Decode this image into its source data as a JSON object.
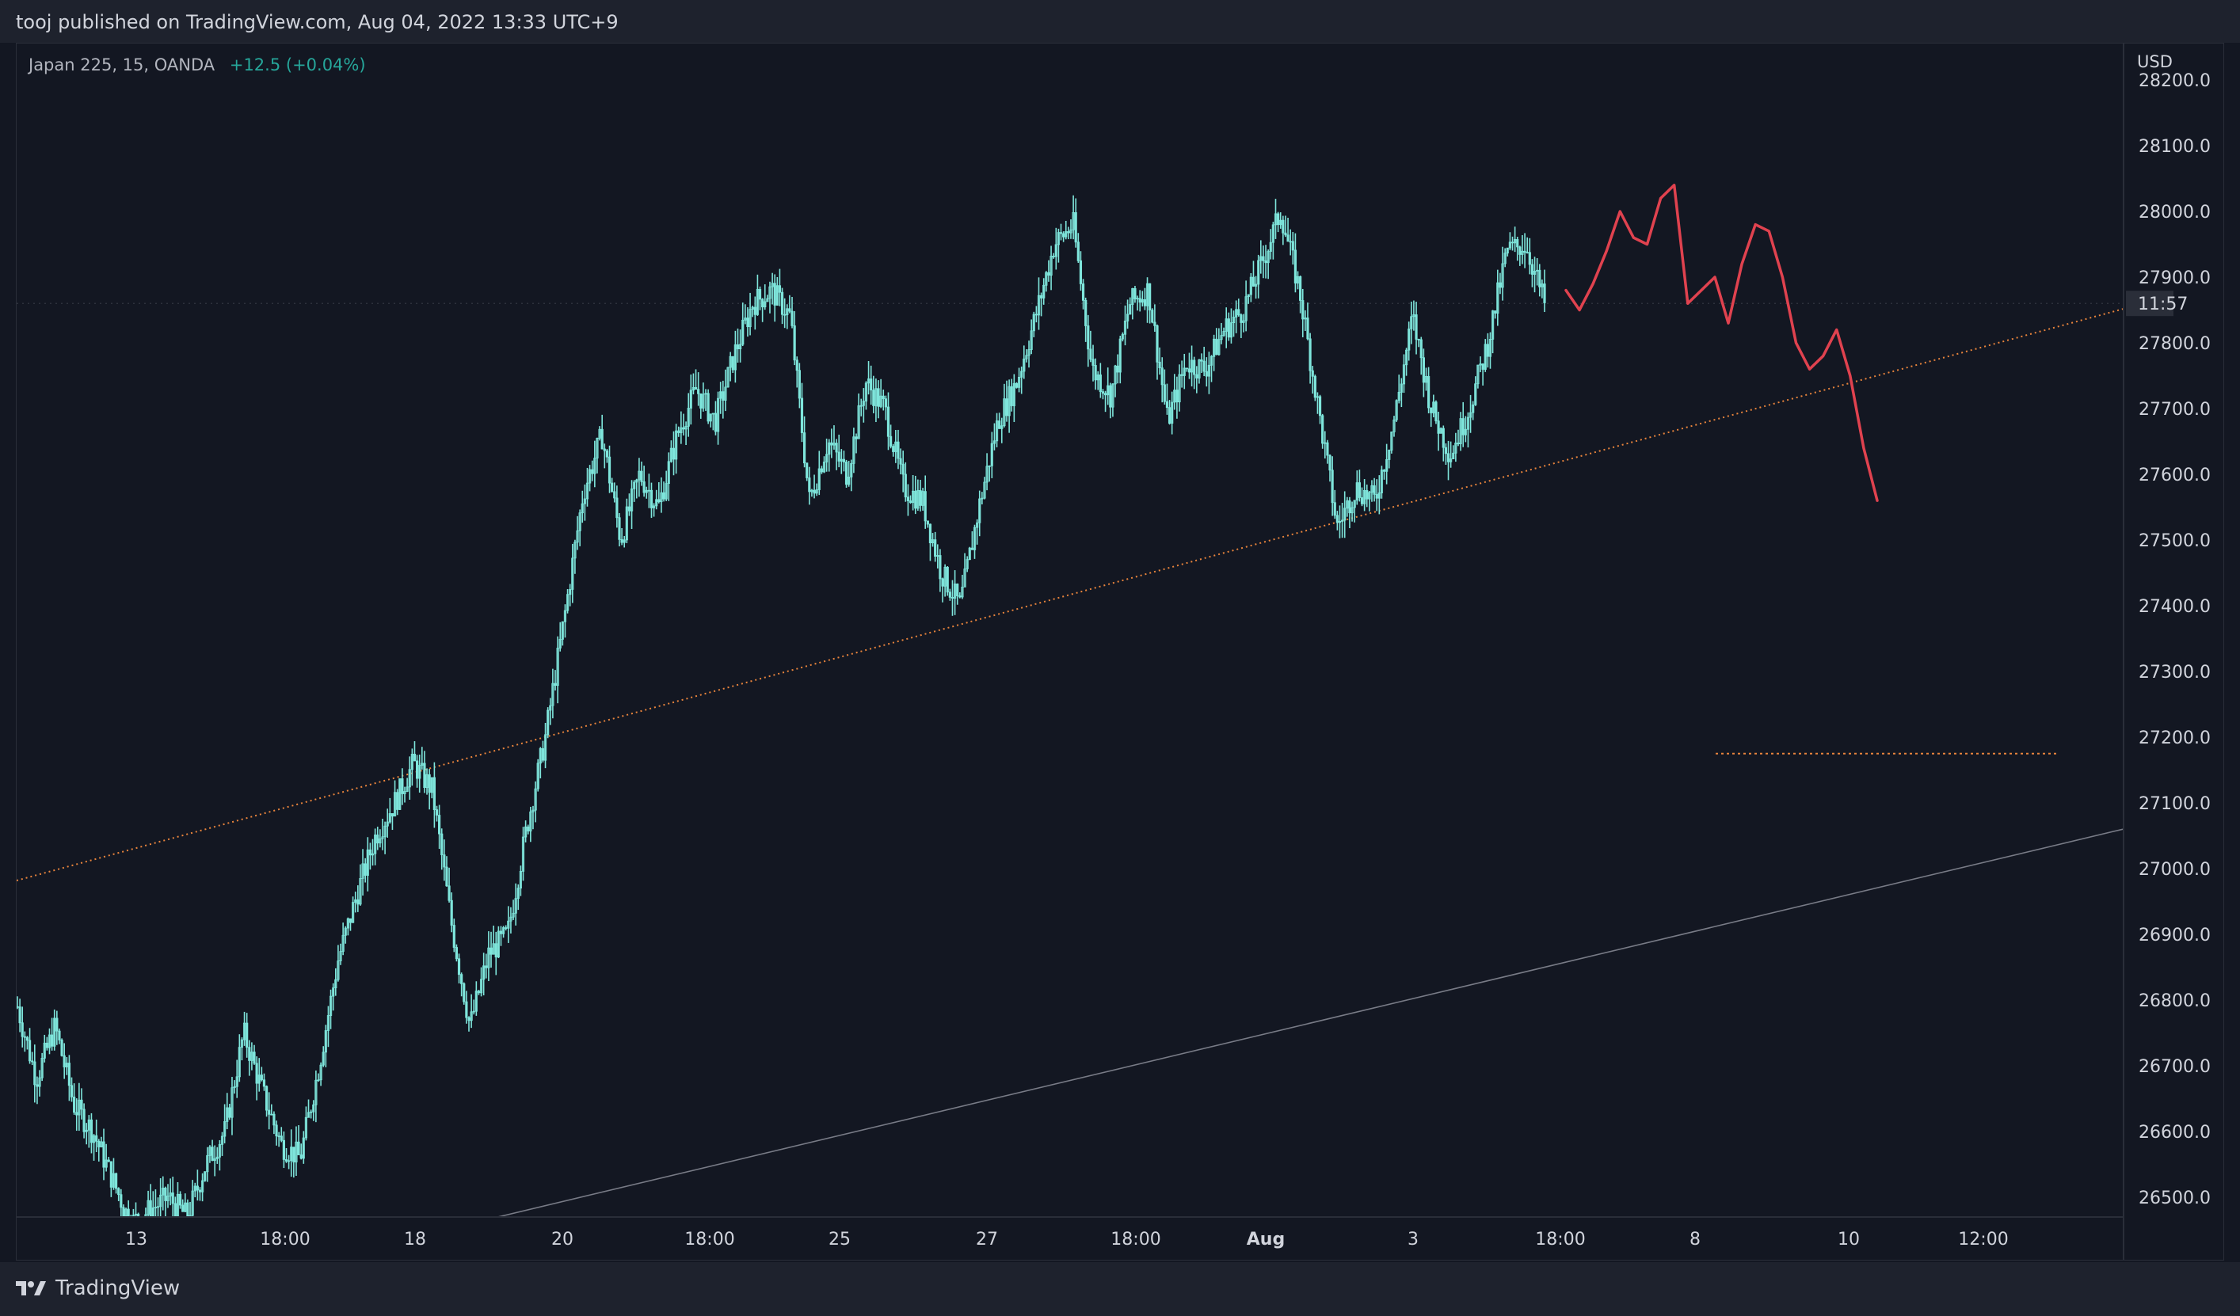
{
  "header": {
    "published": "tooj published on TradingView.com, Aug 04, 2022 13:33 UTC+9"
  },
  "legend": {
    "symbol": "Japan 225, 15, OANDA",
    "change": "+12.5 (+0.04%)"
  },
  "price_axis": {
    "currency": "USD",
    "countdown": "11:57"
  },
  "footer": {
    "brand": "TradingView"
  },
  "colors": {
    "background": "#131722",
    "candle": "#7fe6dc",
    "forecast": "#e0424f",
    "trendline": "#e9843c",
    "channel": "#787b86"
  },
  "chart_data": {
    "type": "line",
    "title": "Japan 225, 15, OANDA",
    "ylim": [
      26460,
      28260
    ],
    "yticks": [
      26500,
      26600,
      26700,
      26800,
      26900,
      27000,
      27100,
      27200,
      27300,
      27400,
      27500,
      27600,
      27700,
      27800,
      27900,
      28000,
      28100,
      28200
    ],
    "ytick_labels": [
      "26500.0",
      "26600.0",
      "26700.0",
      "26800.0",
      "26900.0",
      "27000.0",
      "27100.0",
      "27200.0",
      "27300.0",
      "27400.0",
      "27500.0",
      "27600.0",
      "27700.0",
      "27800.0",
      "27900.0",
      "28000.0",
      "28100.0",
      "28200.0"
    ],
    "xtick_labels": [
      "13",
      "18:00",
      "18",
      "20",
      "18:00",
      "25",
      "27",
      "18:00",
      "Aug",
      "3",
      "18:00",
      "8",
      "10",
      "12:00"
    ],
    "xtick_bold": [
      false,
      false,
      false,
      false,
      false,
      false,
      false,
      false,
      true,
      false,
      false,
      false,
      false,
      false
    ],
    "grid": false,
    "series": [
      {
        "values": [
          26790,
          26680,
          26760,
          26640,
          26600,
          26530,
          26460,
          26480,
          26500,
          26470,
          26550,
          26600,
          26750,
          26660,
          26580,
          26560,
          26700,
          26860,
          26960,
          27050,
          27100,
          27160,
          27120,
          26920,
          26760,
          26870,
          26900,
          27060,
          27200,
          27380,
          27570,
          27660,
          27500,
          27600,
          27550,
          27660,
          27730,
          27680,
          27780,
          27860,
          27880,
          27840,
          27560,
          27650,
          27600,
          27740,
          27700,
          27580,
          27560,
          27450,
          27400,
          27550,
          27680,
          27740,
          27840,
          27950,
          27980,
          27760,
          27720,
          27860,
          27880,
          27680,
          27770,
          27760,
          27820,
          27850,
          27920,
          28000,
          27880,
          27700,
          27520,
          27580,
          27560,
          27680,
          27840,
          27700,
          27630,
          27700,
          27800,
          27940,
          27950,
          27860
        ]
      }
    ],
    "forecast": [
      27880,
      27850,
      27890,
      27940,
      28000,
      27960,
      27950,
      28020,
      28040,
      27860,
      27880,
      27900,
      27830,
      27920,
      27980,
      27970,
      27900,
      27800,
      27760,
      27780,
      27820,
      27750,
      27640,
      27560
    ],
    "trendlines": [
      {
        "style": "dotted",
        "from": [
          "Jul 11",
          26980
        ],
        "to": [
          "Aug 11",
          27840
        ]
      },
      {
        "style": "solid",
        "from": [
          "Jul 19",
          26460
        ],
        "to": [
          "Aug 11",
          27050
        ]
      },
      {
        "style": "dotted-horizontal",
        "value": 27175
      }
    ]
  }
}
